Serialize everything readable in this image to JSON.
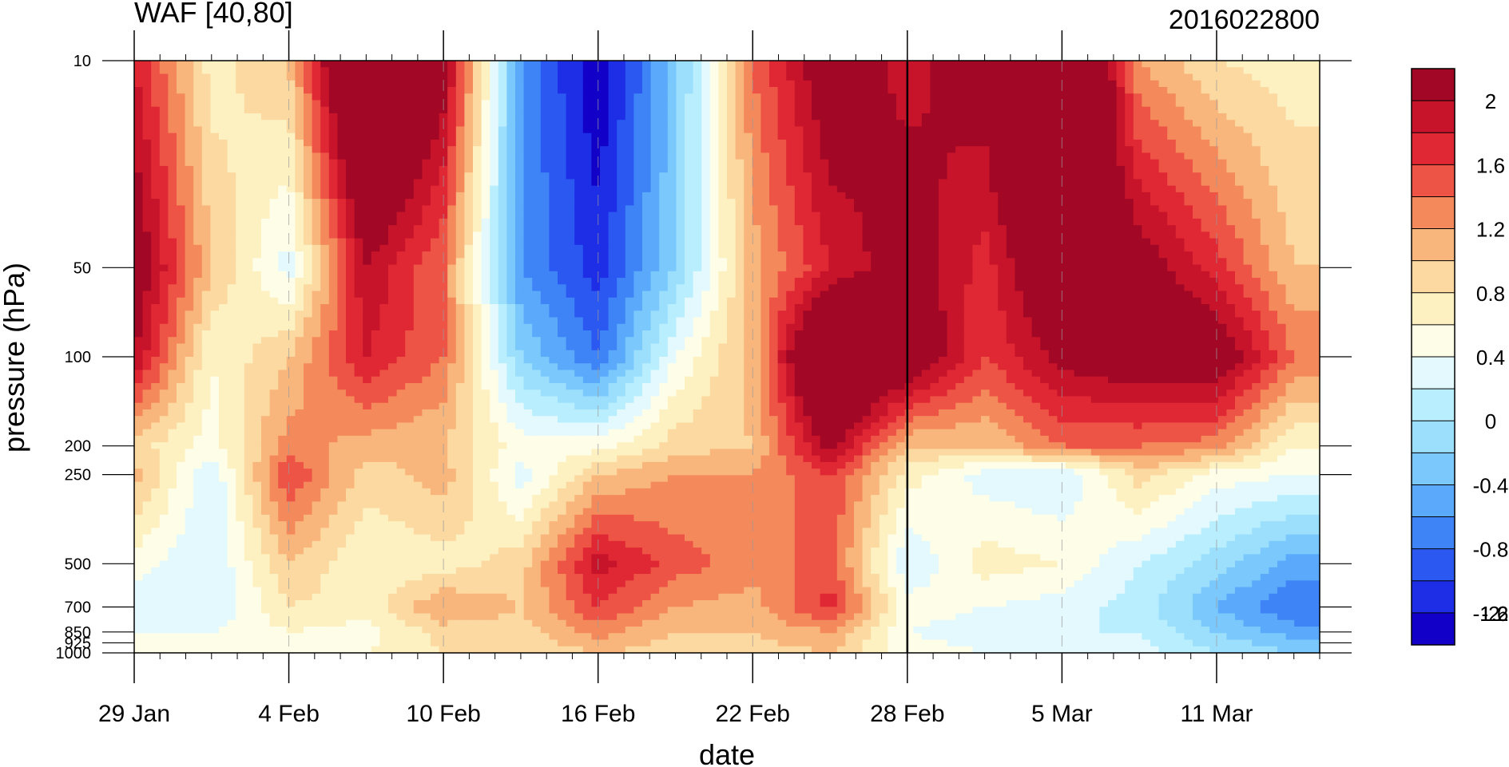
{
  "chart_data": {
    "type": "heatmap",
    "title": "WAF [40,80]",
    "subtitle": "2016022800",
    "xlabel": "date",
    "ylabel": "pressure (hPa)",
    "y_scale": "log",
    "y_inverted": true,
    "ylim": [
      1000,
      10
    ],
    "xlim": [
      "2016-01-29",
      "2016-03-15"
    ],
    "x_ticks": [
      {
        "date": "2016-01-29",
        "label": "29 Jan"
      },
      {
        "date": "2016-02-04",
        "label": "4 Feb"
      },
      {
        "date": "2016-02-10",
        "label": "10 Feb"
      },
      {
        "date": "2016-02-16",
        "label": "16 Feb"
      },
      {
        "date": "2016-02-22",
        "label": "22 Feb"
      },
      {
        "date": "2016-02-28",
        "label": "28 Feb"
      },
      {
        "date": "2016-03-05",
        "label": "5 Mar"
      },
      {
        "date": "2016-03-11",
        "label": "11 Mar"
      }
    ],
    "y_ticks": [
      {
        "p": 10,
        "label": "10"
      },
      {
        "p": 50,
        "label": "50"
      },
      {
        "p": 100,
        "label": "100"
      },
      {
        "p": 200,
        "label": "200"
      },
      {
        "p": 250,
        "label": "250"
      },
      {
        "p": 500,
        "label": "500"
      },
      {
        "p": 700,
        "label": "700"
      },
      {
        "p": 850,
        "label": "850"
      },
      {
        "p": 925,
        "label": "925"
      },
      {
        "p": 1000,
        "label": "1000"
      }
    ],
    "reference_line_date": "2016-02-28",
    "colorbar": {
      "colors": [
        "#1200c8",
        "#1d2ee6",
        "#2a58f0",
        "#3f84f7",
        "#5aa9fb",
        "#7bc8fd",
        "#9cdffd",
        "#b8eefd",
        "#e4f9fd",
        "#fefde8",
        "#fdf1c2",
        "#fcd9a0",
        "#f9b67c",
        "#f48a5c",
        "#ee5446",
        "#e02834",
        "#c7142b",
        "#a20825"
      ],
      "tick_values": [
        2,
        1.6,
        1.2,
        0.8,
        0.4,
        0,
        -0.4,
        -0.8,
        -1.2,
        -1.6,
        -2
      ],
      "tick_labels": [
        "2",
        "1.6",
        "1.2",
        "0.8",
        "0.4",
        "0",
        "-0.4",
        "-0.8",
        "-1.2",
        "-1.6",
        "-2"
      ]
    },
    "levels": [
      10,
      50,
      100,
      200,
      250,
      500,
      700,
      850,
      1000
    ],
    "dates": [
      "2016-01-29",
      "2016-02-01",
      "2016-02-04",
      "2016-02-07",
      "2016-02-10",
      "2016-02-13",
      "2016-02-16",
      "2016-02-19",
      "2016-02-22",
      "2016-02-25",
      "2016-02-28",
      "2016-03-02",
      "2016-03-05",
      "2016-03-08",
      "2016-03-11",
      "2016-03-14"
    ],
    "values": [
      [
        1.0,
        -0.1,
        0.2,
        2.4,
        1.4,
        -1.4,
        -2.2,
        -1.1,
        0.6,
        1.5,
        1.1,
        1.4,
        2.6,
        0.4,
        0.0,
        -0.1
      ],
      [
        1.5,
        0.2,
        -0.5,
        1.2,
        0.6,
        -1.4,
        -1.9,
        -1.0,
        0.3,
        1.0,
        1.4,
        0.9,
        1.7,
        1.4,
        0.9,
        0.2
      ],
      [
        1.2,
        -0.2,
        0.2,
        1.0,
        0.6,
        -1.0,
        -1.6,
        -0.4,
        0.3,
        2.2,
        1.6,
        0.8,
        1.3,
        1.5,
        1.5,
        0.6
      ],
      [
        0.1,
        -0.3,
        0.5,
        0.3,
        0.2,
        -0.3,
        -0.3,
        0.1,
        0.2,
        1.3,
        0.2,
        0.2,
        0.6,
        0.6,
        0.5,
        -0.2
      ],
      [
        0.3,
        -0.6,
        0.8,
        0.1,
        0.3,
        -0.5,
        0.2,
        0.4,
        0.4,
        0.8,
        -0.1,
        -0.5,
        -0.6,
        0.1,
        -0.3,
        -0.4
      ],
      [
        -0.3,
        -0.6,
        0.2,
        -0.2,
        -0.1,
        0.1,
        1.1,
        0.7,
        0.5,
        0.7,
        -0.6,
        -0.1,
        -0.2,
        -0.6,
        -0.9,
        -1.3
      ],
      [
        -0.5,
        -0.6,
        0.0,
        -0.1,
        0.4,
        0.2,
        0.8,
        0.4,
        0.3,
        0.9,
        -0.3,
        -0.4,
        -0.5,
        -0.7,
        -1.2,
        -1.6
      ],
      [
        -0.4,
        -0.4,
        -0.2,
        -0.3,
        0.1,
        0.1,
        0.5,
        0.2,
        0.2,
        0.4,
        -0.4,
        -0.5,
        -0.6,
        -0.6,
        -1.0,
        -1.3
      ],
      [
        -0.2,
        -0.3,
        -0.2,
        -0.2,
        0.0,
        0.0,
        0.2,
        0.1,
        0.1,
        0.2,
        -0.3,
        -0.4,
        -0.5,
        -0.5,
        -0.8,
        -1.0
      ]
    ]
  }
}
